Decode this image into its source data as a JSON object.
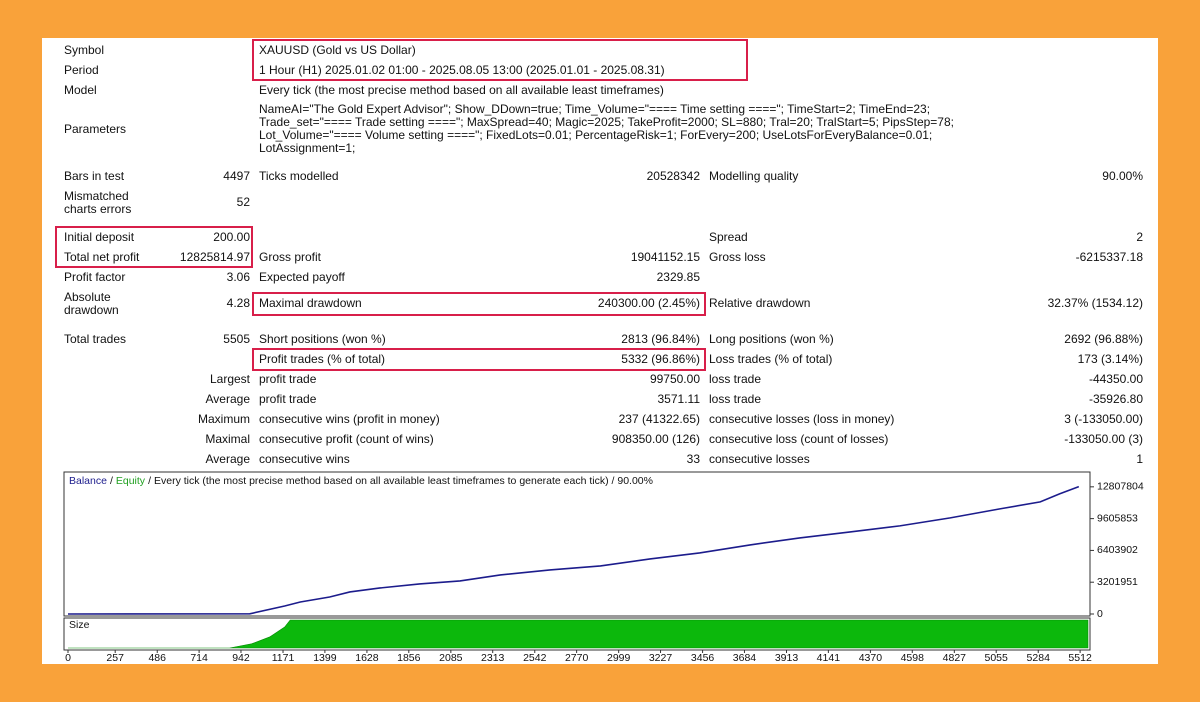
{
  "report": {
    "rows": [
      {
        "label1": "Symbol",
        "value": "XAUUSD (Gold vs US Dollar)"
      },
      {
        "label1": "Period",
        "value": "1 Hour (H1) 2025.01.02 01:00 - 2025.08.05 13:00 (2025.01.01 - 2025.08.31)"
      },
      {
        "label1": "Model",
        "value": "Every tick (the most precise method based on all available least timeframes)"
      },
      {
        "label1": "Parameters",
        "value": [
          "NameAI=\"The Gold Expert Advisor\"; Show_DDown=true; Time_Volume=\"==== Time setting ====\"; TimeStart=2; TimeEnd=23;",
          "Trade_set=\"==== Trade setting ====\"; MaxSpread=40; Magic=2025; TakeProfit=2000; SL=880; Tral=20; TralStart=5; PipsStep=78;",
          "Lot_Volume=\"==== Volume setting ====\"; FixedLots=0.01; PercentageRisk=1; ForEvery=200; UseLotsForEveryBalance=0.01;",
          "LotAssignment=1;"
        ]
      },
      {
        "label1": "Bars in test",
        "value1": "4497",
        "label2": "Ticks modelled",
        "value2": "20528342",
        "label3": "Modelling quality",
        "value3": "90.00%"
      },
      {
        "label1": "Mismatched charts errors",
        "value1": "52"
      },
      {
        "label1": "Initial deposit",
        "value1": "200.00",
        "label3": "Spread",
        "value3": "2"
      },
      {
        "label1": "Total net profit",
        "value1": "12825814.97",
        "label2": "Gross profit",
        "value2": "19041152.15",
        "label3": "Gross loss",
        "value3": "-6215337.18"
      },
      {
        "label1": "Profit factor",
        "value1": "3.06",
        "label2": "Expected payoff",
        "value2": "2329.85"
      },
      {
        "label1": "Absolute drawdown",
        "value1": "4.28",
        "label2": "Maximal drawdown",
        "value2": "240300.00 (2.45%)",
        "label3": "Relative drawdown",
        "value3": "32.37% (1534.12)"
      },
      {
        "label1": "Total trades",
        "value1": "5505",
        "label2": "Short positions (won %)",
        "value2": "2813 (96.84%)",
        "label3": "Long positions (won %)",
        "value3": "2692 (96.88%)"
      },
      {
        "label2": "Profit trades (% of total)",
        "value2": "5332 (96.86%)",
        "label3": "Loss trades (% of total)",
        "value3": "173 (3.14%)"
      },
      {
        "label1": "Largest",
        "label2": "profit trade",
        "value2": "99750.00",
        "label3": "loss trade",
        "value3": "-44350.00"
      },
      {
        "label1": "Average",
        "label2": "profit trade",
        "value2": "3571.11",
        "label3": "loss trade",
        "value3": "-35926.80"
      },
      {
        "label1": "Maximum",
        "label2": "consecutive wins (profit in money)",
        "value2": "237 (41322.65)",
        "label3": "consecutive losses (loss in money)",
        "value3": "3 (-133050.00)"
      },
      {
        "label1": "Maximal",
        "label2": "consecutive profit (count of wins)",
        "value2": "908350.00 (126)",
        "label3": "consecutive loss (count of losses)",
        "value3": "-133050.00 (3)"
      },
      {
        "label1": "Average",
        "label2": "consecutive wins",
        "value2": "33",
        "label3": "consecutive losses",
        "value3": "1"
      }
    ]
  },
  "chart_data": [
    {
      "type": "line",
      "legend": [
        {
          "name": "Balance",
          "color": "#1c1c8c"
        },
        {
          "name": "Equity",
          "color": "#22a022"
        }
      ],
      "legend_separator": "/",
      "subtitle": "Every tick (the most precise method based on all available least timeframes to generate each tick) / 90.00%",
      "x": [
        0,
        990,
        1180,
        1265,
        1425,
        1535,
        1700,
        1915,
        2135,
        2355,
        2625,
        2900,
        3170,
        3440,
        3715,
        3985,
        4260,
        4530,
        4805,
        5075,
        5295,
        5400,
        5505
      ],
      "series": [
        {
          "name": "Balance",
          "color": "#1c1c8c",
          "values": [
            200,
            20000,
            806800,
            1210000,
            1714000,
            2218700,
            2622000,
            3025000,
            3328000,
            3933000,
            4437000,
            4840000,
            5546000,
            6151000,
            6958000,
            7664000,
            8269000,
            8874000,
            9681000,
            10589000,
            11294000,
            12100000,
            12826015
          ]
        }
      ],
      "xlim": [
        0,
        5555
      ],
      "ylim": [
        0,
        14100000
      ],
      "yticks": [
        0,
        3201951,
        6403902,
        9605853,
        12807804
      ],
      "xticks": [
        0,
        257,
        486,
        714,
        942,
        1171,
        1399,
        1628,
        1856,
        2085,
        2313,
        2542,
        2770,
        2999,
        3227,
        3456,
        3684,
        3913,
        4141,
        4370,
        4598,
        4827,
        5055,
        5284,
        5512
      ]
    },
    {
      "type": "area",
      "title": "Size",
      "color": "#0cb80c",
      "x": [
        0,
        880,
        1000,
        1100,
        1180,
        1210,
        5555
      ],
      "values": [
        0,
        0,
        0.15,
        0.4,
        0.75,
        1,
        1
      ],
      "xlim": [
        0,
        5555
      ],
      "ylim": [
        0,
        1
      ]
    }
  ]
}
